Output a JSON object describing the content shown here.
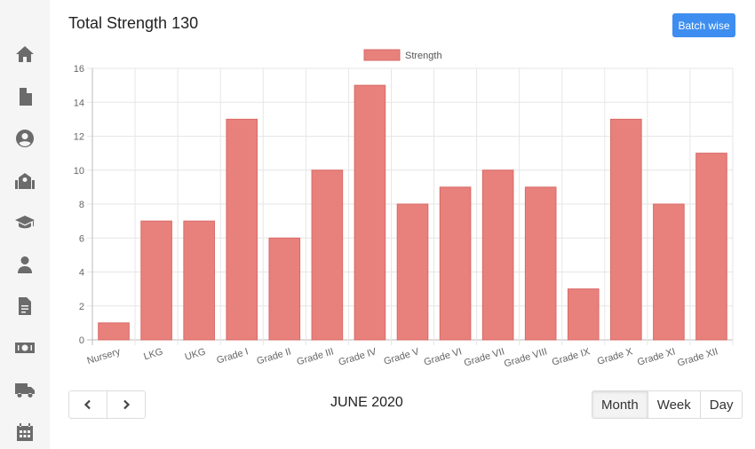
{
  "sidebar": {
    "items": [
      {
        "icon": "home-icon"
      },
      {
        "icon": "document-icon"
      },
      {
        "icon": "user-circle-icon"
      },
      {
        "icon": "school-icon"
      },
      {
        "icon": "graduation-cap-icon"
      },
      {
        "icon": "teacher-icon"
      },
      {
        "icon": "report-icon"
      },
      {
        "icon": "money-icon"
      },
      {
        "icon": "truck-icon"
      },
      {
        "icon": "calendar-icon"
      }
    ],
    "icon_color": "#6b6b6b"
  },
  "header": {
    "title": "Total Strength 130",
    "batch_button_label": "Batch wise"
  },
  "footer": {
    "period_label": "JUNE 2020",
    "views": [
      "Month",
      "Week",
      "Day"
    ],
    "active_view": "Month"
  },
  "chart_data": {
    "type": "bar",
    "legend": {
      "label": "Strength",
      "position": "top"
    },
    "categories": [
      "Nursery",
      "LKG",
      "UKG",
      "Grade I",
      "Grade II",
      "Grade III",
      "Grade IV",
      "Grade V",
      "Grade VI",
      "Grade VII",
      "Grade VIII",
      "Grade IX",
      "Grade X",
      "Grade XI",
      "Grade XII"
    ],
    "series": [
      {
        "name": "Strength",
        "values": [
          1,
          7,
          7,
          13,
          6,
          10,
          15,
          8,
          9,
          10,
          9,
          3,
          13,
          8,
          11
        ]
      }
    ],
    "ylim": [
      0,
      16
    ],
    "yticks": [
      0,
      2,
      4,
      6,
      8,
      10,
      12,
      14,
      16
    ],
    "grid": true,
    "bar_color": "#e8807c",
    "bar_border_color": "#d96a66"
  }
}
